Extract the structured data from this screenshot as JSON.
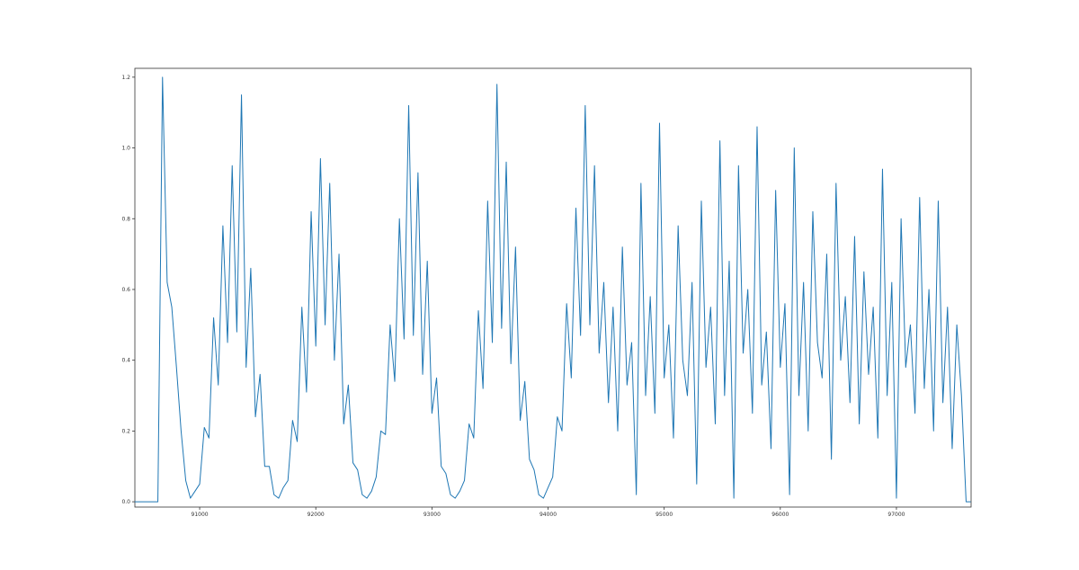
{
  "chart_data": {
    "type": "line",
    "x": [
      90440,
      90480,
      90520,
      90560,
      90600,
      90640,
      90680,
      90720,
      90760,
      90800,
      90840,
      90880,
      90920,
      90960,
      91000,
      91040,
      91080,
      91120,
      91160,
      91200,
      91240,
      91280,
      91320,
      91360,
      91400,
      91440,
      91480,
      91520,
      91560,
      91600,
      91640,
      91680,
      91720,
      91760,
      91800,
      91840,
      91880,
      91920,
      91960,
      92000,
      92040,
      92080,
      92120,
      92160,
      92200,
      92240,
      92280,
      92320,
      92360,
      92400,
      92440,
      92480,
      92520,
      92560,
      92600,
      92640,
      92680,
      92720,
      92760,
      92800,
      92840,
      92880,
      92920,
      92960,
      93000,
      93040,
      93080,
      93120,
      93160,
      93200,
      93240,
      93280,
      93320,
      93360,
      93400,
      93440,
      93480,
      93520,
      93560,
      93600,
      93640,
      93680,
      93720,
      93760,
      93800,
      93840,
      93880,
      93920,
      93960,
      94000,
      94040,
      94080,
      94120,
      94160,
      94200,
      94240,
      94280,
      94320,
      94360,
      94400,
      94440,
      94480,
      94520,
      94560,
      94600,
      94640,
      94680,
      94720,
      94760,
      94800,
      94840,
      94880,
      94920,
      94960,
      95000,
      95040,
      95080,
      95120,
      95160,
      95200,
      95240,
      95280,
      95320,
      95360,
      95400,
      95440,
      95480,
      95520,
      95560,
      95600,
      95640,
      95680,
      95720,
      95760,
      95800,
      95840,
      95880,
      95920,
      95960,
      96000,
      96040,
      96080,
      96120,
      96160,
      96200,
      96240,
      96280,
      96320,
      96360,
      96400,
      96440,
      96480,
      96520,
      96560,
      96600,
      96640,
      96680,
      96720,
      96760,
      96800,
      96840,
      96880,
      96920,
      96960,
      97000,
      97040,
      97080,
      97120,
      97160,
      97200,
      97240,
      97280,
      97320,
      97360,
      97400,
      97440,
      97480,
      97520,
      97560,
      97600,
      97640
    ],
    "series": [
      {
        "color": "#1f77b4",
        "values": [
          0,
          0,
          0,
          0,
          0,
          0,
          1.2,
          0.62,
          0.55,
          0.38,
          0.2,
          0.06,
          0.01,
          0.03,
          0.05,
          0.21,
          0.18,
          0.52,
          0.33,
          0.78,
          0.45,
          0.95,
          0.48,
          1.15,
          0.38,
          0.66,
          0.24,
          0.36,
          0.1,
          0.1,
          0.02,
          0.01,
          0.04,
          0.06,
          0.23,
          0.17,
          0.55,
          0.31,
          0.82,
          0.44,
          0.97,
          0.5,
          0.9,
          0.4,
          0.7,
          0.22,
          0.33,
          0.11,
          0.09,
          0.02,
          0.01,
          0.03,
          0.07,
          0.2,
          0.19,
          0.5,
          0.34,
          0.8,
          0.46,
          1.12,
          0.47,
          0.93,
          0.36,
          0.68,
          0.25,
          0.35,
          0.1,
          0.08,
          0.02,
          0.01,
          0.03,
          0.06,
          0.22,
          0.18,
          0.54,
          0.32,
          0.85,
          0.45,
          1.18,
          0.49,
          0.96,
          0.39,
          0.72,
          0.23,
          0.34,
          0.12,
          0.09,
          0.02,
          0.01,
          0.04,
          0.07,
          0.24,
          0.2,
          0.56,
          0.35,
          0.83,
          0.47,
          1.12,
          0.5,
          0.95,
          0.42,
          0.62,
          0.28,
          0.55,
          0.2,
          0.72,
          0.33,
          0.45,
          0.02,
          0.9,
          0.3,
          0.58,
          0.25,
          1.07,
          0.35,
          0.5,
          0.18,
          0.78,
          0.4,
          0.3,
          0.62,
          0.05,
          0.85,
          0.38,
          0.55,
          0.22,
          1.02,
          0.3,
          0.68,
          0.01,
          0.95,
          0.42,
          0.6,
          0.25,
          1.06,
          0.33,
          0.48,
          0.15,
          0.88,
          0.38,
          0.56,
          0.02,
          1.0,
          0.3,
          0.62,
          0.2,
          0.82,
          0.45,
          0.35,
          0.7,
          0.12,
          0.9,
          0.4,
          0.58,
          0.28,
          0.75,
          0.22,
          0.65,
          0.36,
          0.55,
          0.18,
          0.94,
          0.3,
          0.62,
          0.01,
          0.8,
          0.38,
          0.5,
          0.25,
          0.86,
          0.32,
          0.6,
          0.2,
          0.85,
          0.28,
          0.55,
          0.15,
          0.5,
          0.3,
          0,
          0
        ]
      }
    ],
    "xlim": [
      90442,
      97643
    ],
    "ylim": [
      -0.015,
      1.225
    ],
    "xticks": [
      91000,
      92000,
      93000,
      94000,
      95000,
      96000,
      97000
    ],
    "yticks": [
      {
        "value": 0,
        "label": "0.0"
      },
      0.2,
      0.4,
      0.6,
      0.8,
      {
        "value": 1,
        "label": "1.0"
      },
      1.2
    ],
    "grid": false
  }
}
